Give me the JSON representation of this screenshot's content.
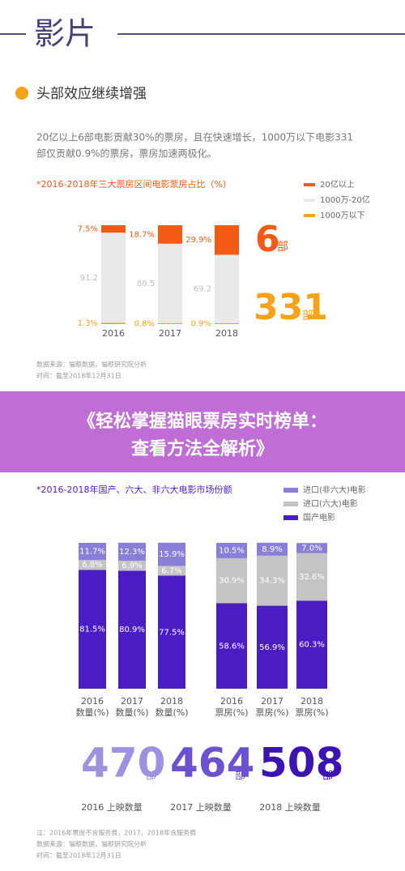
{
  "header": {
    "title": "影片"
  },
  "section1": {
    "heading": "头部效应继续增强",
    "paragraph": [
      "20亿以上6部电影贡献30%的票房，且在快速增长，1000万以下电影331",
      "部仅贡献0.9%的票房，票房加速两极化。"
    ],
    "highlights": [
      {
        "value": 6,
        "unit": "部"
      },
      {
        "value": 331,
        "unit": "部"
      }
    ],
    "notes": [
      "数据来源：猫眼数据，猫眼研究院分析",
      "时间：截至2018年12月31日"
    ]
  },
  "banner": {
    "lines": [
      "《轻松掌握猫眼票房实时榜单：",
      "查看方法全解析》"
    ]
  },
  "section2": {
    "release_counts": [
      {
        "value": 470,
        "unit": "部",
        "label": "2016 上映数量",
        "color": "#9d91e2"
      },
      {
        "value": 464,
        "unit": "部",
        "label": "2017 上映数量",
        "color": "#6b52d2"
      },
      {
        "value": 508,
        "unit": "部",
        "label": "2018 上映数量",
        "color": "#3c14b6"
      }
    ],
    "notes": [
      "注：2016年票房不含服务费，2017、2018年含服务费",
      "数据来源：猫眼数据，猫眼研究院分析",
      "时间：截至2018年12月31日"
    ]
  },
  "chart_data": [
    {
      "type": "stacked_bar",
      "title": "*2016-2018年三大票房区间电影票房占比（%）",
      "categories": [
        "2016",
        "2017",
        "2018"
      ],
      "ylim": [
        0,
        100
      ],
      "series": [
        {
          "name": "20亿以上",
          "color": "#f45a14",
          "values": [
            7.5,
            18.7,
            29.9
          ],
          "value_labels": [
            "7.5%",
            "18.7%",
            "29.9%"
          ]
        },
        {
          "name": "1000万-20亿",
          "color": "#e9e9e9",
          "values": [
            91.2,
            80.5,
            69.2
          ]
        },
        {
          "name": "1000万以下",
          "color": "#f7a21b",
          "values": [
            1.3,
            0.8,
            0.9
          ],
          "value_labels": [
            "1.3%",
            "0.8%",
            "0.9%"
          ]
        }
      ]
    },
    {
      "type": "stacked_bar",
      "title": "*2016-2018年国产、六大、非六大电影市场份额",
      "categories": [
        "2016",
        "2017",
        "2018"
      ],
      "x_sublabel": "数量(%)",
      "ylim": [
        0,
        100
      ],
      "series": [
        {
          "name": "进口(非六大)电影",
          "color": "#8a7fd8",
          "values": [
            11.7,
            12.3,
            15.9
          ],
          "value_labels": [
            "11.7%",
            "12.3%",
            "15.9%"
          ]
        },
        {
          "name": "进口(六大)电影",
          "color": "#c4c4c4",
          "values": [
            6.8,
            6.9,
            6.7
          ],
          "value_labels": [
            "6.8%",
            "6.9%",
            "6.7%"
          ]
        },
        {
          "name": "国产电影",
          "color": "#4a1dc4",
          "values": [
            81.5,
            80.9,
            77.5
          ],
          "value_labels": [
            "81.5%",
            "80.9%",
            "77.5%"
          ]
        }
      ]
    },
    {
      "type": "stacked_bar",
      "categories": [
        "2016",
        "2017",
        "2018"
      ],
      "x_sublabel": "票房(%)",
      "ylim": [
        0,
        100
      ],
      "series": [
        {
          "color": "#8a7fd8",
          "values": [
            10.5,
            8.9,
            7.0
          ],
          "value_labels": [
            "10.5%",
            "8.9%",
            "7.0%"
          ]
        },
        {
          "color": "#c4c4c4",
          "values": [
            30.9,
            34.3,
            32.6
          ],
          "value_labels": [
            "30.9%",
            "34.3%",
            "32.6%"
          ]
        },
        {
          "color": "#4a1dc4",
          "values": [
            58.6,
            56.9,
            60.3
          ],
          "value_labels": [
            "58.6%",
            "56.9%",
            "60.3%"
          ]
        }
      ]
    }
  ]
}
